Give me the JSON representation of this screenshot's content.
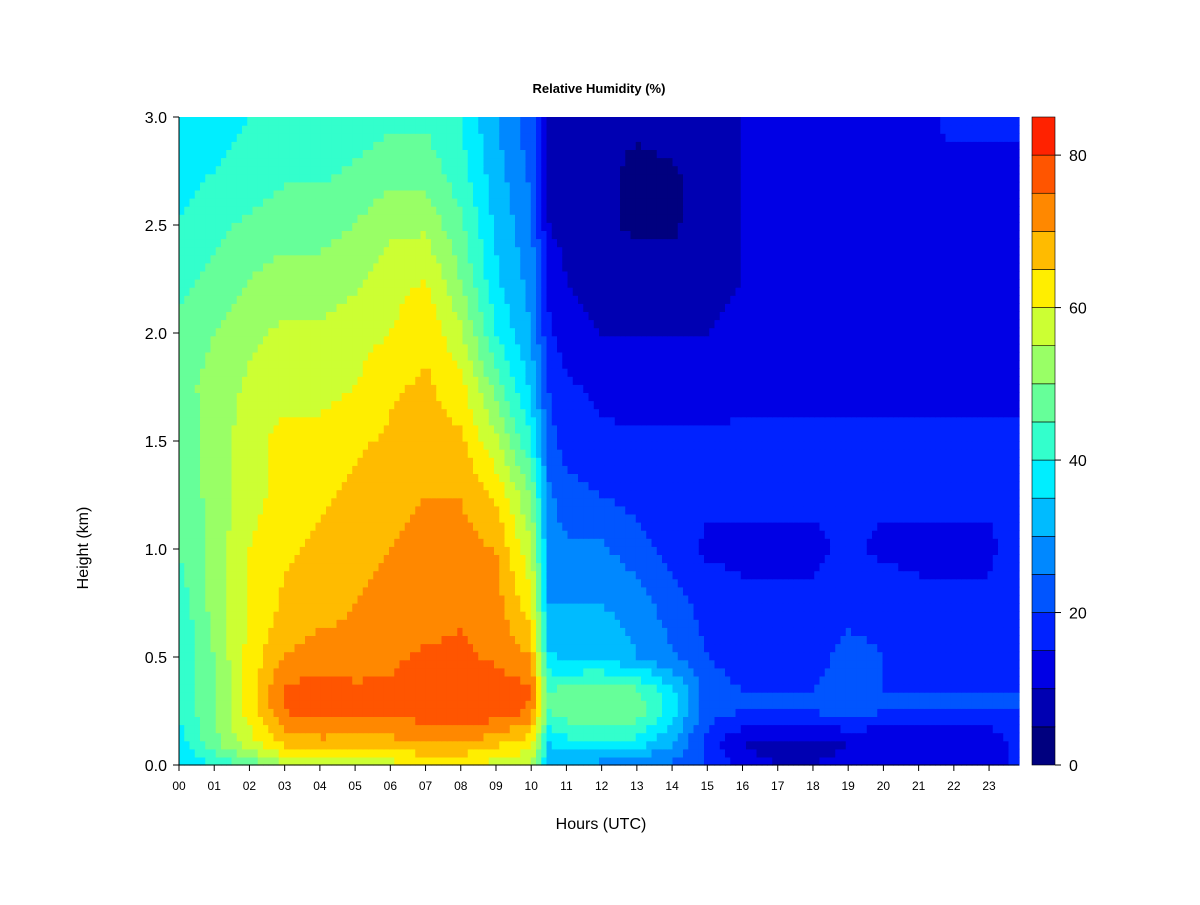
{
  "chart_data": {
    "type": "heatmap",
    "title": "Relative Humidity (%)",
    "xlabel": "Hours (UTC)",
    "ylabel": "Height (km)",
    "x_ticks": [
      "00",
      "01",
      "02",
      "03",
      "04",
      "05",
      "06",
      "07",
      "08",
      "09",
      "10",
      "11",
      "12",
      "13",
      "14",
      "15",
      "16",
      "17",
      "18",
      "19",
      "20",
      "21",
      "22",
      "23"
    ],
    "y_ticks": [
      "0.0",
      "0.5",
      "1.0",
      "1.5",
      "2.0",
      "2.5",
      "3.0"
    ],
    "xlim": [
      0,
      23.85
    ],
    "ylim": [
      0,
      3.0
    ],
    "x_hours": [
      0.0,
      1.0,
      2.0,
      3.0,
      4.0,
      5.0,
      6.0,
      7.0,
      8.0,
      9.0,
      10.0,
      10.5,
      11.0,
      12.0,
      13.0,
      14.0,
      15.0,
      16.0,
      17.0,
      18.0,
      19.0,
      20.0,
      21.0,
      22.0,
      23.0,
      23.85
    ],
    "y_km": [
      0.0,
      0.1,
      0.25,
      0.35,
      0.5,
      0.75,
      1.0,
      1.25,
      1.5,
      1.75,
      2.0,
      2.25,
      2.5,
      2.75,
      3.0
    ],
    "rh_percent": [
      [
        35,
        40,
        46,
        55,
        58,
        58,
        58,
        60,
        60,
        58,
        55,
        30,
        30,
        28,
        25,
        24,
        20,
        12,
        10,
        10,
        12,
        12,
        10,
        10,
        10,
        18
      ],
      [
        38,
        48,
        58,
        66,
        68,
        68,
        68,
        70,
        70,
        66,
        62,
        35,
        38,
        38,
        38,
        30,
        18,
        10,
        8,
        8,
        10,
        10,
        10,
        10,
        10,
        18
      ],
      [
        40,
        50,
        62,
        75,
        78,
        76,
        76,
        78,
        80,
        78,
        74,
        45,
        48,
        50,
        48,
        38,
        22,
        20,
        20,
        20,
        22,
        20,
        20,
        20,
        20,
        20
      ],
      [
        40,
        50,
        62,
        76,
        78,
        76,
        76,
        78,
        80,
        78,
        76,
        45,
        46,
        48,
        46,
        36,
        22,
        20,
        20,
        20,
        22,
        20,
        20,
        20,
        20,
        20
      ],
      [
        40,
        50,
        62,
        70,
        72,
        72,
        74,
        76,
        76,
        74,
        70,
        36,
        34,
        34,
        30,
        26,
        20,
        18,
        18,
        18,
        22,
        20,
        18,
        18,
        18,
        20
      ],
      [
        42,
        52,
        60,
        66,
        68,
        70,
        72,
        72,
        74,
        72,
        62,
        30,
        30,
        30,
        28,
        22,
        18,
        16,
        16,
        16,
        18,
        18,
        16,
        16,
        16,
        18
      ],
      [
        45,
        52,
        60,
        64,
        66,
        68,
        70,
        72,
        72,
        70,
        56,
        28,
        26,
        26,
        22,
        18,
        14,
        14,
        14,
        14,
        16,
        14,
        14,
        14,
        14,
        18
      ],
      [
        46,
        52,
        58,
        62,
        64,
        66,
        68,
        70,
        70,
        64,
        50,
        26,
        22,
        20,
        18,
        16,
        16,
        16,
        16,
        16,
        16,
        16,
        16,
        16,
        16,
        16
      ],
      [
        46,
        52,
        58,
        62,
        62,
        64,
        66,
        68,
        66,
        56,
        40,
        22,
        18,
        16,
        16,
        16,
        16,
        16,
        16,
        16,
        16,
        16,
        16,
        16,
        16,
        16
      ],
      [
        48,
        52,
        56,
        58,
        58,
        60,
        64,
        66,
        62,
        48,
        34,
        20,
        16,
        14,
        12,
        12,
        12,
        14,
        14,
        14,
        14,
        14,
        14,
        14,
        14,
        14
      ],
      [
        46,
        50,
        54,
        56,
        56,
        58,
        60,
        64,
        56,
        40,
        30,
        16,
        12,
        10,
        10,
        10,
        10,
        12,
        12,
        14,
        14,
        14,
        14,
        14,
        14,
        14
      ],
      [
        44,
        46,
        50,
        52,
        52,
        54,
        58,
        60,
        50,
        36,
        28,
        14,
        10,
        8,
        8,
        8,
        8,
        10,
        10,
        12,
        14,
        14,
        14,
        14,
        14,
        14
      ],
      [
        40,
        44,
        46,
        48,
        48,
        50,
        54,
        54,
        46,
        34,
        26,
        10,
        8,
        6,
        4,
        4,
        8,
        10,
        10,
        12,
        14,
        14,
        14,
        14,
        14,
        14
      ],
      [
        38,
        40,
        42,
        44,
        44,
        46,
        48,
        48,
        42,
        32,
        24,
        8,
        6,
        6,
        4,
        4,
        8,
        10,
        10,
        12,
        14,
        14,
        14,
        14,
        14,
        14
      ],
      [
        36,
        38,
        40,
        40,
        40,
        42,
        44,
        44,
        40,
        30,
        22,
        8,
        6,
        6,
        6,
        8,
        10,
        10,
        12,
        14,
        14,
        14,
        14,
        16,
        16,
        16
      ]
    ],
    "colorbar": {
      "levels": [
        0,
        5,
        10,
        15,
        20,
        25,
        30,
        35,
        40,
        45,
        50,
        55,
        60,
        65,
        70,
        75,
        80,
        85
      ],
      "colors": [
        "#00007F",
        "#0000B2",
        "#0000E5",
        "#0022FF",
        "#0055FF",
        "#0088FF",
        "#00BBFF",
        "#00EEFF",
        "#33FFCC",
        "#66FF99",
        "#99FF66",
        "#CCFF33",
        "#FFEE00",
        "#FFBB00",
        "#FF8800",
        "#FF5500",
        "#FF2200",
        "#E50000",
        "#B20000",
        "#7F0000"
      ],
      "ticks": [
        "0",
        "20",
        "40",
        "60",
        "80"
      ]
    }
  }
}
